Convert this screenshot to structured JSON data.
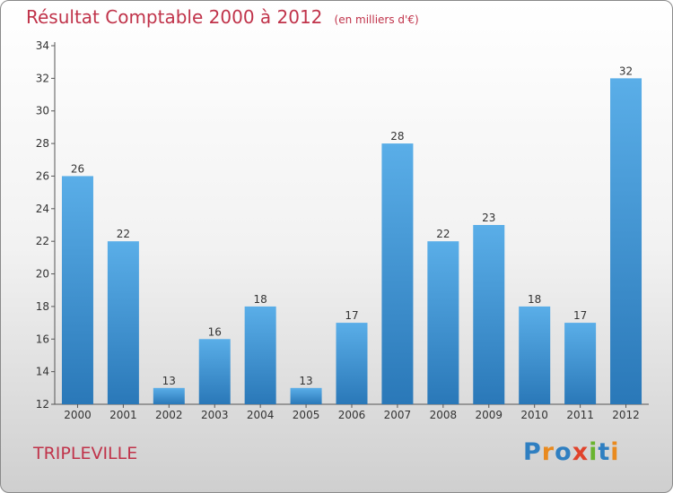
{
  "title": "Résultat Comptable 2000 à 2012",
  "subtitle": "(en milliers d'€)",
  "commune": "TRIPLEVILLE",
  "logo": {
    "text": "Proxiti",
    "letters": [
      {
        "char": "P",
        "color": "#2f7fc1"
      },
      {
        "char": "r",
        "color": "#e98a1f"
      },
      {
        "char": "o",
        "color": "#2f7fc1"
      },
      {
        "char": "x",
        "color": "#e0432b"
      },
      {
        "char": "i",
        "color": "#69b42e"
      },
      {
        "char": "t",
        "color": "#2f7fc1"
      },
      {
        "char": "i",
        "color": "#e98a1f"
      }
    ]
  },
  "colors": {
    "accent": "#c0334a",
    "bar_light": "#5aaee8",
    "bar_dark": "#2a78b8"
  },
  "chart_data": {
    "type": "bar",
    "title": "Résultat Comptable 2000 à 2012",
    "subtitle": "(en milliers d'€)",
    "xlabel": "",
    "ylabel": "",
    "categories": [
      "2000",
      "2001",
      "2002",
      "2003",
      "2004",
      "2005",
      "2006",
      "2007",
      "2008",
      "2009",
      "2010",
      "2011",
      "2012"
    ],
    "values": [
      26,
      22,
      13,
      16,
      18,
      13,
      17,
      28,
      22,
      23,
      18,
      17,
      32
    ],
    "ylim": [
      12,
      34
    ],
    "yticks": [
      12,
      14,
      16,
      18,
      20,
      22,
      24,
      26,
      28,
      30,
      32,
      34
    ],
    "data_labels": true,
    "grid": false,
    "legend": "none"
  }
}
